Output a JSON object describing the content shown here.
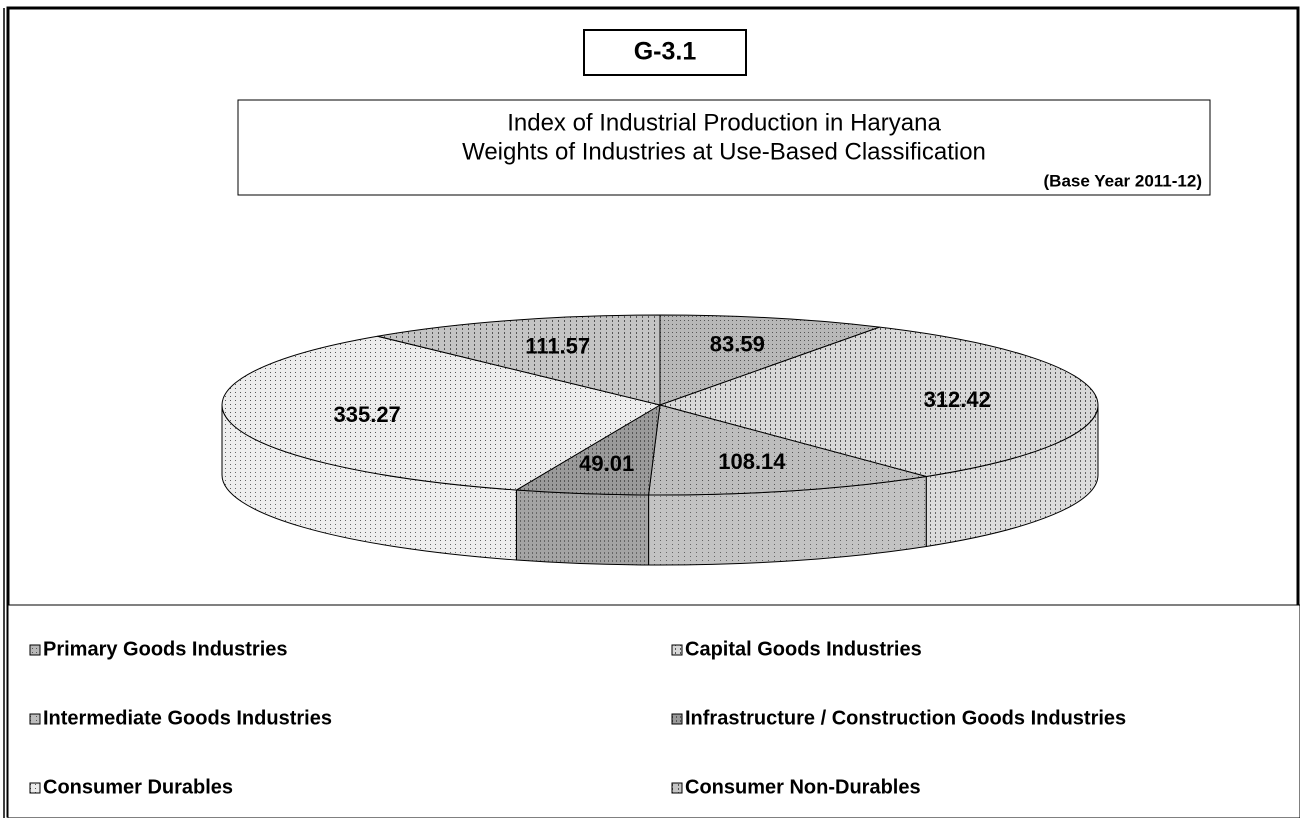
{
  "chart_data": {
    "type": "pie3d",
    "badge": "G-3.1",
    "title": "Index of Industrial Production in Haryana",
    "subtitle": "Weights of Industries at Use-Based Classification",
    "note": "(Base Year  2011-12)",
    "categories": [
      "Primary Goods Industries",
      "Capital Goods Industries",
      "Intermediate Goods Industries",
      "Infrastructure / Construction Goods Industries",
      "Consumer Durables",
      "Consumer Non-Durables"
    ],
    "values": [
      83.59,
      312.42,
      108.14,
      49.01,
      335.27,
      111.57
    ],
    "colors": [
      "#b8b8b8",
      "#d8d8d8",
      "#bdbdbd",
      "#9a9a9a",
      "#ececec",
      "#c4c4c4"
    ]
  }
}
